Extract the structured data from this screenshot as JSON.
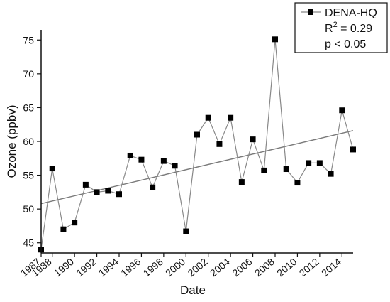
{
  "chart_data": {
    "type": "scatter",
    "title": "",
    "xlabel": "Date",
    "ylabel": "Ozone (ppbv)",
    "xlim": [
      1987,
      2015
    ],
    "ylim": [
      43.5,
      76.5
    ],
    "x_ticks": [
      1987,
      1988,
      1990,
      1992,
      1994,
      1996,
      1998,
      2000,
      2002,
      2004,
      2006,
      2008,
      2010,
      2012,
      2014
    ],
    "y_ticks": [
      45,
      50,
      55,
      60,
      65,
      70,
      75
    ],
    "grid": false,
    "legend_position": "top-right",
    "series": [
      {
        "name": "DENA-HQ",
        "marker": "square",
        "x": [
          1987,
          1988,
          1989,
          1990,
          1991,
          1992,
          1993,
          1994,
          1995,
          1996,
          1997,
          1998,
          1999,
          2000,
          2001,
          2002,
          2003,
          2004,
          2005,
          2006,
          2007,
          2008,
          2009,
          2010,
          2011,
          2012,
          2013,
          2014,
          2015
        ],
        "y": [
          44.0,
          56.0,
          47.0,
          48.0,
          53.6,
          52.5,
          52.7,
          52.2,
          57.9,
          57.3,
          53.2,
          57.1,
          56.4,
          46.7,
          61.0,
          63.5,
          59.6,
          63.5,
          54.0,
          60.3,
          55.7,
          75.1,
          55.9,
          53.9,
          56.8,
          56.8,
          55.2,
          64.6,
          58.8
        ]
      }
    ],
    "trendline": {
      "x": [
        1987,
        2015
      ],
      "y": [
        50.8,
        61.6
      ]
    },
    "legend": {
      "label": "DENA-HQ",
      "r2_prefix": "R",
      "r2_superscript": "2",
      "r2_value": " = 0.29",
      "p_text": "p < 0.05"
    },
    "colors": {
      "axis": "#111111",
      "series_line": "#888888",
      "marker": "#000000",
      "trend_line": "#7a7a7a"
    }
  }
}
